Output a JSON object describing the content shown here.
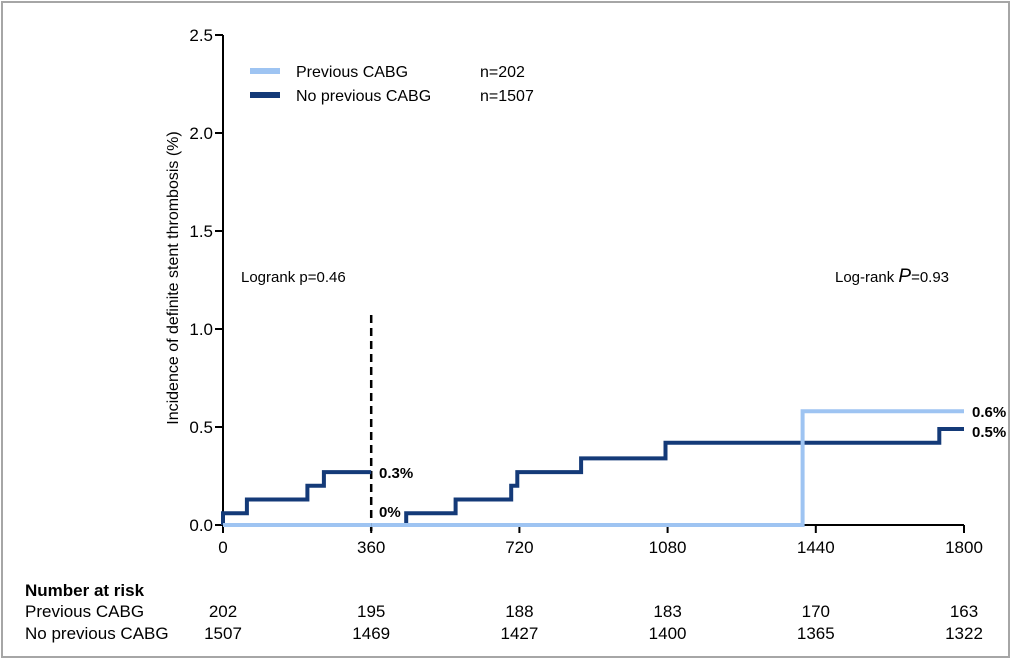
{
  "chart_data": {
    "type": "line",
    "subtype": "kaplan-meier-step",
    "ylabel": "Incidence of definite stent thrombosis (%)",
    "xlabel": "",
    "xlim": [
      0,
      1800
    ],
    "ylim": [
      0,
      2.5
    ],
    "x_ticks": [
      "0",
      "360",
      "720",
      "1080",
      "1440",
      "1800"
    ],
    "y_ticks": [
      "0.0",
      "0.5",
      "1.0",
      "1.5",
      "2.0",
      "2.5"
    ],
    "landmark_x": 360,
    "annotations": {
      "left": "Logrank p=0.46",
      "right_prefix": "Log-rank ",
      "right_p": "P",
      "right_suffix": "=0.93"
    },
    "legend": [
      {
        "name": "Previous CABG",
        "n": "n=202",
        "color": "#9ec4f2"
      },
      {
        "name": "No previous CABG",
        "n": "n=1507",
        "color": "#143a78"
      }
    ],
    "series": [
      {
        "name": "Previous CABG",
        "color": "#9ec4f2",
        "segments": [
          [
            [
              0,
              0
            ],
            [
              360,
              0
            ]
          ],
          [
            [
              360,
              0
            ],
            [
              1408,
              0
            ],
            [
              1408,
              0.58
            ],
            [
              1800,
              0.58
            ]
          ]
        ],
        "end_labels": [
          "0%",
          "0.6%"
        ]
      },
      {
        "name": "No previous CABG",
        "color": "#143a78",
        "segments": [
          [
            [
              0,
              0
            ],
            [
              0,
              0.06
            ],
            [
              58,
              0.06
            ],
            [
              58,
              0.13
            ],
            [
              205,
              0.13
            ],
            [
              205,
              0.2
            ],
            [
              245,
              0.2
            ],
            [
              245,
              0.27
            ],
            [
              360,
              0.27
            ]
          ],
          [
            [
              445,
              0
            ],
            [
              445,
              0.06
            ],
            [
              565,
              0.06
            ],
            [
              565,
              0.13
            ],
            [
              700,
              0.13
            ],
            [
              700,
              0.2
            ],
            [
              715,
              0.2
            ],
            [
              715,
              0.27
            ],
            [
              870,
              0.27
            ],
            [
              870,
              0.34
            ],
            [
              1075,
              0.34
            ],
            [
              1075,
              0.42
            ],
            [
              1740,
              0.42
            ],
            [
              1740,
              0.49
            ],
            [
              1800,
              0.49
            ]
          ]
        ],
        "end_labels": [
          "0.3%",
          "0.5%"
        ]
      }
    ],
    "risk_table": {
      "title": "Number at risk",
      "rows": [
        {
          "label": "Previous CABG",
          "values": [
            "202",
            "195",
            "188",
            "183",
            "170",
            "163"
          ]
        },
        {
          "label": "No previous CABG",
          "values": [
            "1507",
            "1469",
            "1427",
            "1400",
            "1365",
            "1322"
          ]
        }
      ]
    }
  }
}
